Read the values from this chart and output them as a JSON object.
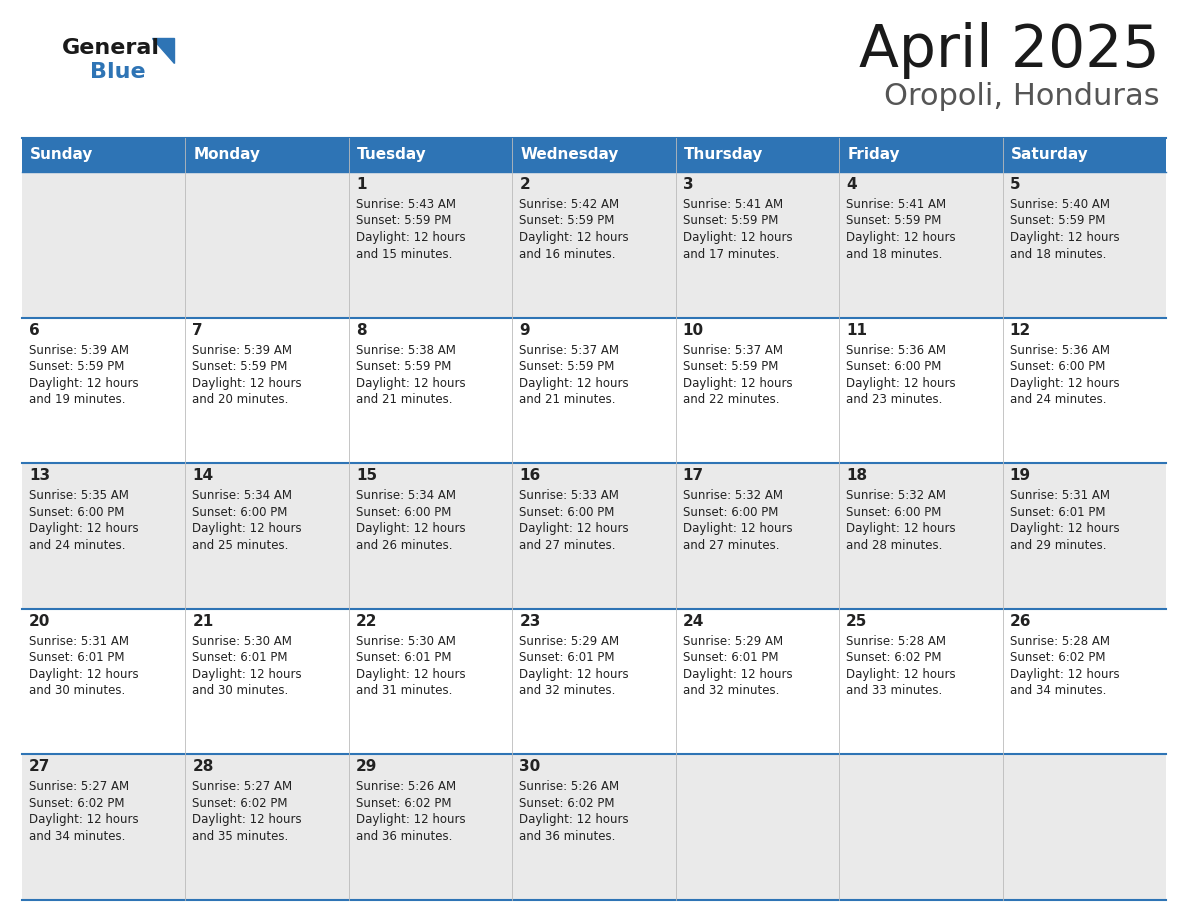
{
  "title": "April 2025",
  "subtitle": "Oropoli, Honduras",
  "header_bg": "#2E74B5",
  "header_text_color": "#FFFFFF",
  "row_bg_light": "#EAEAEA",
  "row_bg_white": "#FFFFFF",
  "cell_text_color": "#222222",
  "border_color": "#2E74B5",
  "day_headers": [
    "Sunday",
    "Monday",
    "Tuesday",
    "Wednesday",
    "Thursday",
    "Friday",
    "Saturday"
  ],
  "logo_color": "#2E74B5",
  "calendar": [
    [
      {
        "day": "",
        "sunrise": "",
        "sunset": "",
        "daylight_h": "",
        "daylight_m": ""
      },
      {
        "day": "",
        "sunrise": "",
        "sunset": "",
        "daylight_h": "",
        "daylight_m": ""
      },
      {
        "day": "1",
        "sunrise": "5:43 AM",
        "sunset": "5:59 PM",
        "daylight_h": "Daylight: 12 hours",
        "daylight_m": "and 15 minutes."
      },
      {
        "day": "2",
        "sunrise": "5:42 AM",
        "sunset": "5:59 PM",
        "daylight_h": "Daylight: 12 hours",
        "daylight_m": "and 16 minutes."
      },
      {
        "day": "3",
        "sunrise": "5:41 AM",
        "sunset": "5:59 PM",
        "daylight_h": "Daylight: 12 hours",
        "daylight_m": "and 17 minutes."
      },
      {
        "day": "4",
        "sunrise": "5:41 AM",
        "sunset": "5:59 PM",
        "daylight_h": "Daylight: 12 hours",
        "daylight_m": "and 18 minutes."
      },
      {
        "day": "5",
        "sunrise": "5:40 AM",
        "sunset": "5:59 PM",
        "daylight_h": "Daylight: 12 hours",
        "daylight_m": "and 18 minutes."
      }
    ],
    [
      {
        "day": "6",
        "sunrise": "5:39 AM",
        "sunset": "5:59 PM",
        "daylight_h": "Daylight: 12 hours",
        "daylight_m": "and 19 minutes."
      },
      {
        "day": "7",
        "sunrise": "5:39 AM",
        "sunset": "5:59 PM",
        "daylight_h": "Daylight: 12 hours",
        "daylight_m": "and 20 minutes."
      },
      {
        "day": "8",
        "sunrise": "5:38 AM",
        "sunset": "5:59 PM",
        "daylight_h": "Daylight: 12 hours",
        "daylight_m": "and 21 minutes."
      },
      {
        "day": "9",
        "sunrise": "5:37 AM",
        "sunset": "5:59 PM",
        "daylight_h": "Daylight: 12 hours",
        "daylight_m": "and 21 minutes."
      },
      {
        "day": "10",
        "sunrise": "5:37 AM",
        "sunset": "5:59 PM",
        "daylight_h": "Daylight: 12 hours",
        "daylight_m": "and 22 minutes."
      },
      {
        "day": "11",
        "sunrise": "5:36 AM",
        "sunset": "6:00 PM",
        "daylight_h": "Daylight: 12 hours",
        "daylight_m": "and 23 minutes."
      },
      {
        "day": "12",
        "sunrise": "5:36 AM",
        "sunset": "6:00 PM",
        "daylight_h": "Daylight: 12 hours",
        "daylight_m": "and 24 minutes."
      }
    ],
    [
      {
        "day": "13",
        "sunrise": "5:35 AM",
        "sunset": "6:00 PM",
        "daylight_h": "Daylight: 12 hours",
        "daylight_m": "and 24 minutes."
      },
      {
        "day": "14",
        "sunrise": "5:34 AM",
        "sunset": "6:00 PM",
        "daylight_h": "Daylight: 12 hours",
        "daylight_m": "and 25 minutes."
      },
      {
        "day": "15",
        "sunrise": "5:34 AM",
        "sunset": "6:00 PM",
        "daylight_h": "Daylight: 12 hours",
        "daylight_m": "and 26 minutes."
      },
      {
        "day": "16",
        "sunrise": "5:33 AM",
        "sunset": "6:00 PM",
        "daylight_h": "Daylight: 12 hours",
        "daylight_m": "and 27 minutes."
      },
      {
        "day": "17",
        "sunrise": "5:32 AM",
        "sunset": "6:00 PM",
        "daylight_h": "Daylight: 12 hours",
        "daylight_m": "and 27 minutes."
      },
      {
        "day": "18",
        "sunrise": "5:32 AM",
        "sunset": "6:00 PM",
        "daylight_h": "Daylight: 12 hours",
        "daylight_m": "and 28 minutes."
      },
      {
        "day": "19",
        "sunrise": "5:31 AM",
        "sunset": "6:01 PM",
        "daylight_h": "Daylight: 12 hours",
        "daylight_m": "and 29 minutes."
      }
    ],
    [
      {
        "day": "20",
        "sunrise": "5:31 AM",
        "sunset": "6:01 PM",
        "daylight_h": "Daylight: 12 hours",
        "daylight_m": "and 30 minutes."
      },
      {
        "day": "21",
        "sunrise": "5:30 AM",
        "sunset": "6:01 PM",
        "daylight_h": "Daylight: 12 hours",
        "daylight_m": "and 30 minutes."
      },
      {
        "day": "22",
        "sunrise": "5:30 AM",
        "sunset": "6:01 PM",
        "daylight_h": "Daylight: 12 hours",
        "daylight_m": "and 31 minutes."
      },
      {
        "day": "23",
        "sunrise": "5:29 AM",
        "sunset": "6:01 PM",
        "daylight_h": "Daylight: 12 hours",
        "daylight_m": "and 32 minutes."
      },
      {
        "day": "24",
        "sunrise": "5:29 AM",
        "sunset": "6:01 PM",
        "daylight_h": "Daylight: 12 hours",
        "daylight_m": "and 32 minutes."
      },
      {
        "day": "25",
        "sunrise": "5:28 AM",
        "sunset": "6:02 PM",
        "daylight_h": "Daylight: 12 hours",
        "daylight_m": "and 33 minutes."
      },
      {
        "day": "26",
        "sunrise": "5:28 AM",
        "sunset": "6:02 PM",
        "daylight_h": "Daylight: 12 hours",
        "daylight_m": "and 34 minutes."
      }
    ],
    [
      {
        "day": "27",
        "sunrise": "5:27 AM",
        "sunset": "6:02 PM",
        "daylight_h": "Daylight: 12 hours",
        "daylight_m": "and 34 minutes."
      },
      {
        "day": "28",
        "sunrise": "5:27 AM",
        "sunset": "6:02 PM",
        "daylight_h": "Daylight: 12 hours",
        "daylight_m": "and 35 minutes."
      },
      {
        "day": "29",
        "sunrise": "5:26 AM",
        "sunset": "6:02 PM",
        "daylight_h": "Daylight: 12 hours",
        "daylight_m": "and 36 minutes."
      },
      {
        "day": "30",
        "sunrise": "5:26 AM",
        "sunset": "6:02 PM",
        "daylight_h": "Daylight: 12 hours",
        "daylight_m": "and 36 minutes."
      },
      {
        "day": "",
        "sunrise": "",
        "sunset": "",
        "daylight_h": "",
        "daylight_m": ""
      },
      {
        "day": "",
        "sunrise": "",
        "sunset": "",
        "daylight_h": "",
        "daylight_m": ""
      },
      {
        "day": "",
        "sunrise": "",
        "sunset": "",
        "daylight_h": "",
        "daylight_m": ""
      }
    ]
  ]
}
